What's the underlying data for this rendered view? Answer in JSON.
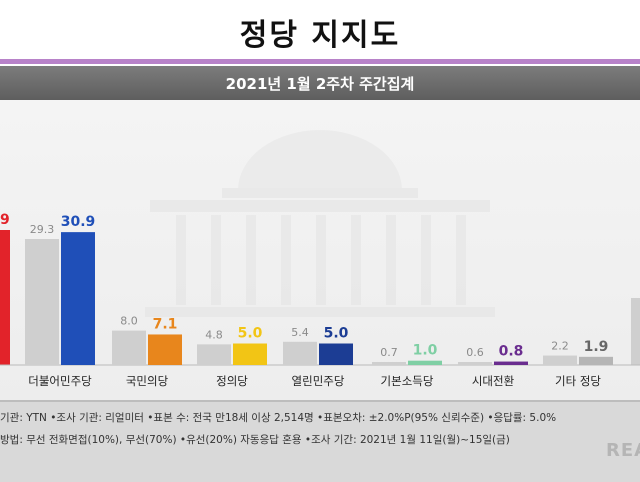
{
  "header": {
    "title": "정당 지지도",
    "subtitle": "2021년 1월 2주차 주간집계"
  },
  "colors": {
    "accent": "#b882c9",
    "prev_bar": "#cfcfcf",
    "democratic": "#1f4fb8",
    "ppp": "#e8861c",
    "justice": "#f2c515",
    "open_democratic": "#1c3d94",
    "basic_income": "#7fcfa4",
    "transition": "#6a2d8f",
    "other": "#b5b5b5",
    "red": "#e2232a"
  },
  "chart_data": {
    "type": "bar",
    "title": "정당 지지도",
    "subtitle": "2021년 1월 2주차 주간집계",
    "categories": [
      "더불어민주당",
      "국민의당",
      "정의당",
      "열린민주당",
      "기본소득당",
      "시대전환",
      "기타 정당"
    ],
    "series": [
      {
        "values": [
          29.3,
          8.0,
          4.8,
          5.4,
          0.7,
          0.6,
          2.2
        ]
      },
      {
        "values": [
          30.9,
          7.1,
          5.0,
          5.0,
          1.0,
          0.8,
          1.9
        ]
      }
    ],
    "value_labels": {
      "prev": [
        "29.3",
        "8.0",
        "4.8",
        "5.4",
        "0.7",
        "0.6",
        "2.2"
      ],
      "curr": [
        "30.9",
        "7.1",
        "5.0",
        "5.0",
        "1.0",
        "0.8",
        "1.9"
      ]
    },
    "partial_left_label": "9",
    "ylim": [
      0,
      35
    ],
    "grid": false,
    "legend": "none"
  },
  "footer": {
    "line1": "기관: YTN  •조사 기관: 리얼미터  •표본 수: 전국 만18세 이상 2,514명  •표본오차: ±2.0%P(95% 신뢰수준)  •응답률: 5.0%",
    "line2": "방법: 무선 전화면접(10%), 무선(70%)  •유선(20%) 자동응답 혼용  •조사 기간: 2021년 1월 11일(월)~15일(금)",
    "brand": "REAL"
  }
}
